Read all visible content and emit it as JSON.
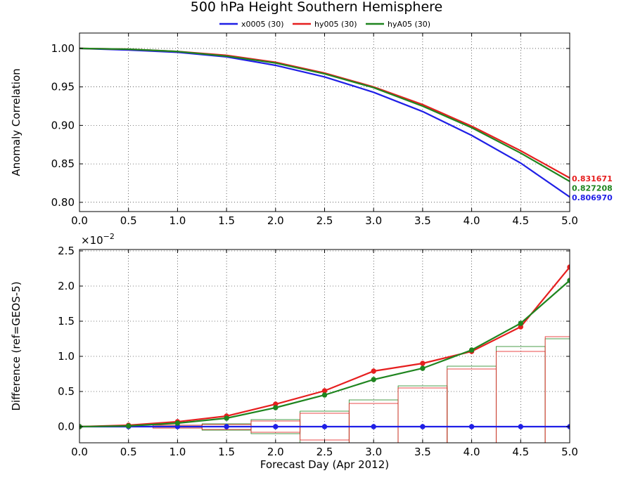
{
  "title": "500 hPa Height Southern Hemisphere",
  "legend": [
    {
      "name": "x0005 (30)",
      "color": "#1f1fe6"
    },
    {
      "name": "hy005 (30)",
      "color": "#e61f1f"
    },
    {
      "name": "hyA05 (30)",
      "color": "#1f851f"
    }
  ],
  "chart_data": [
    {
      "type": "line",
      "ylabel": "Anomaly Correlation",
      "xlim": [
        0.0,
        5.0
      ],
      "ylim": [
        0.788,
        1.02
      ],
      "x_ticks": [
        "0.0",
        "0.5",
        "1.0",
        "1.5",
        "2.0",
        "2.5",
        "3.0",
        "3.5",
        "4.0",
        "4.5",
        "5.0"
      ],
      "y_ticks": [
        "0.80",
        "0.85",
        "0.90",
        "0.95",
        "1.00"
      ],
      "y_tick_values": [
        0.8,
        0.85,
        0.9,
        0.95,
        1.0
      ],
      "x": [
        0.0,
        0.5,
        1.0,
        1.5,
        2.0,
        2.5,
        3.0,
        3.5,
        4.0,
        4.5,
        5.0
      ],
      "grid": true,
      "series": [
        {
          "name": "x0005 (30)",
          "color": "#1f1fe6",
          "values": [
            1.0,
            0.998,
            0.995,
            0.989,
            0.978,
            0.963,
            0.943,
            0.918,
            0.887,
            0.851,
            0.80697
          ],
          "end_label": "0.806970"
        },
        {
          "name": "hy005 (30)",
          "color": "#e61f1f",
          "values": [
            1.0,
            0.999,
            0.996,
            0.991,
            0.982,
            0.968,
            0.95,
            0.927,
            0.899,
            0.867,
            0.831671
          ],
          "end_label": "0.831671"
        },
        {
          "name": "hyA05 (30)",
          "color": "#1f851f",
          "values": [
            1.0,
            0.999,
            0.996,
            0.99,
            0.981,
            0.967,
            0.949,
            0.925,
            0.897,
            0.864,
            0.827208
          ],
          "end_label": "0.827208"
        }
      ]
    },
    {
      "type": "line",
      "ylabel": "Difference (ref=GEOS-5)",
      "xlabel": "Forecast Day (Apr 2012)",
      "exponent_label": "×10−2",
      "exponent_base": "×10",
      "exponent_power": "−2",
      "xlim": [
        0.0,
        5.0
      ],
      "ylim": [
        -0.23,
        2.52
      ],
      "x_ticks": [
        "0.0",
        "0.5",
        "1.0",
        "1.5",
        "2.0",
        "2.5",
        "3.0",
        "3.5",
        "4.0",
        "4.5",
        "5.0"
      ],
      "y_ticks": [
        "0.0",
        "0.5",
        "1.0",
        "1.5",
        "2.0",
        "2.5"
      ],
      "y_tick_values": [
        0.0,
        0.5,
        1.0,
        1.5,
        2.0,
        2.5
      ],
      "x": [
        0.0,
        0.5,
        1.0,
        1.5,
        2.0,
        2.5,
        3.0,
        3.5,
        4.0,
        4.5,
        5.0
      ],
      "grid": true,
      "series": [
        {
          "name": "x0005 (30)",
          "color": "#1f1fe6",
          "values": [
            0,
            0,
            0,
            0,
            0,
            0,
            0,
            0,
            0,
            0,
            0
          ]
        },
        {
          "name": "hy005 (30)",
          "color": "#e61f1f",
          "values": [
            0.0,
            0.02,
            0.07,
            0.15,
            0.32,
            0.51,
            0.79,
            0.9,
            1.07,
            1.42,
            2.27
          ]
        },
        {
          "name": "hyA05 (30)",
          "color": "#1f851f",
          "values": [
            0.0,
            0.01,
            0.05,
            0.12,
            0.27,
            0.45,
            0.67,
            0.83,
            1.09,
            1.47,
            2.08
          ]
        }
      ],
      "confidence_boxes": [
        {
          "x": 0.5,
          "red": [
            -0.005,
            0.005
          ],
          "green": [
            -0.005,
            0.005
          ]
        },
        {
          "x": 1.0,
          "red": [
            -0.02,
            0.02
          ],
          "green": [
            -0.02,
            0.02
          ]
        },
        {
          "x": 1.5,
          "red": [
            -0.04,
            0.03
          ],
          "green": [
            -0.05,
            0.04
          ]
        },
        {
          "x": 2.0,
          "red": [
            -0.08,
            0.08
          ],
          "green": [
            -0.1,
            0.1
          ]
        },
        {
          "x": 2.5,
          "red": [
            -0.19,
            0.19
          ],
          "green": [
            -0.23,
            0.22
          ]
        },
        {
          "x": 3.0,
          "red": [
            -0.23,
            0.33
          ],
          "green": [
            -0.23,
            0.38
          ]
        },
        {
          "x": 3.5,
          "red": [
            -0.23,
            0.55
          ],
          "green": [
            -0.23,
            0.58
          ]
        },
        {
          "x": 4.0,
          "red": [
            -0.23,
            0.82
          ],
          "green": [
            -0.23,
            0.86
          ]
        },
        {
          "x": 4.5,
          "red": [
            -0.23,
            1.07
          ],
          "green": [
            -0.23,
            1.14
          ]
        },
        {
          "x": 5.0,
          "red": [
            -0.23,
            1.28
          ],
          "green": [
            -0.23,
            1.25
          ]
        }
      ]
    }
  ]
}
